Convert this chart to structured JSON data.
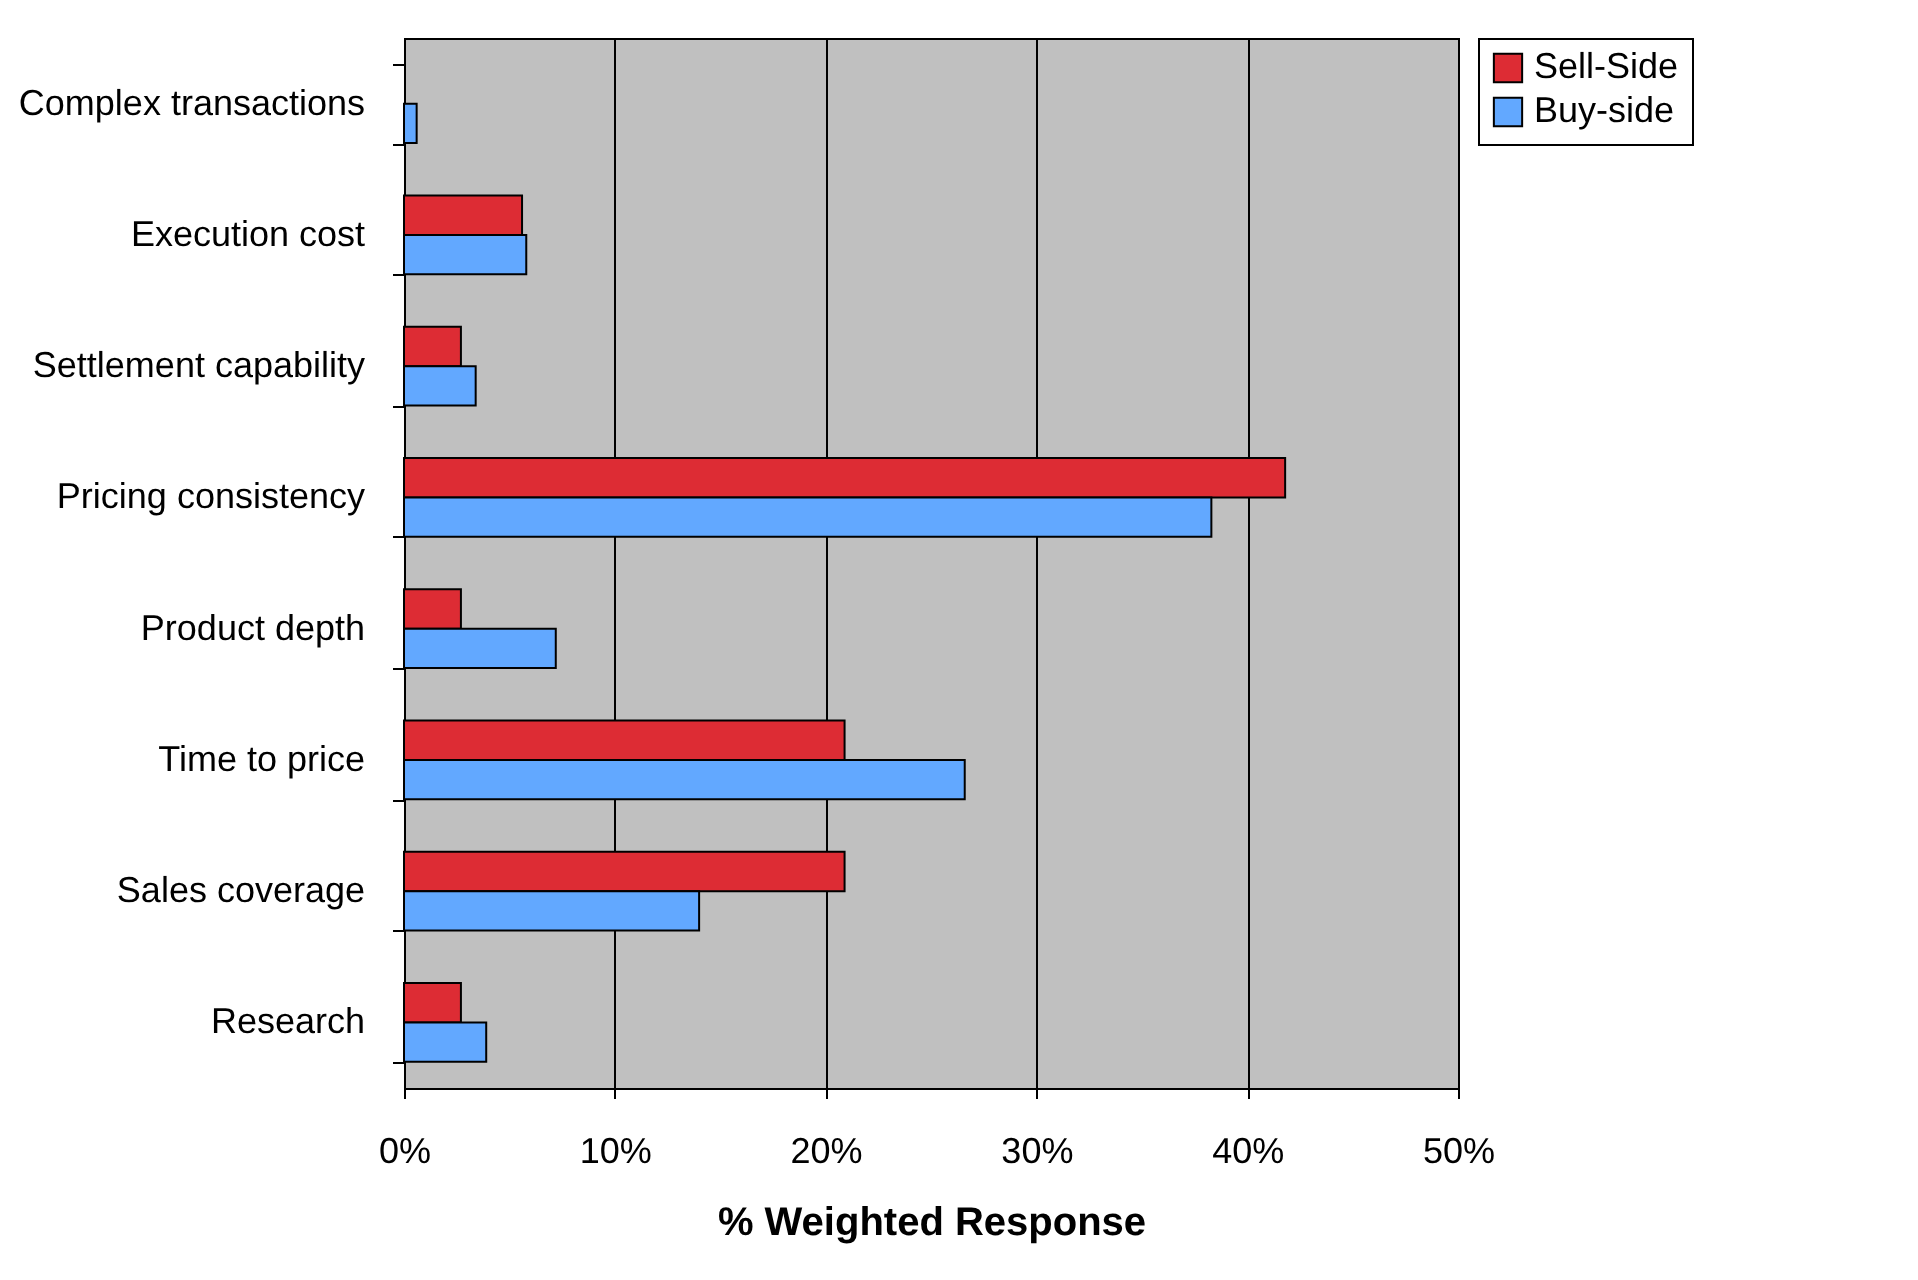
{
  "chart_data": {
    "type": "bar",
    "orientation": "horizontal",
    "xlabel": "% Weighted Response",
    "categories": [
      "Complex transactions",
      "Execution cost",
      "Settlement capability",
      "Pricing consistency",
      "Product depth",
      "Time to price",
      "Sales coverage",
      "Research"
    ],
    "series": [
      {
        "name": "Sell-Side",
        "color": "#dd2c34",
        "values": [
          null,
          5.6,
          2.7,
          41.8,
          2.7,
          20.9,
          20.9,
          2.7
        ]
      },
      {
        "name": "Buy-side",
        "color": "#62a8ff",
        "values": [
          0.6,
          5.8,
          3.4,
          38.3,
          7.2,
          26.6,
          14.0,
          3.9
        ]
      }
    ],
    "xlim": [
      0,
      50
    ],
    "xticks": [
      {
        "value": 0,
        "label": "0%"
      },
      {
        "value": 10,
        "label": "10%"
      },
      {
        "value": 20,
        "label": "20%"
      },
      {
        "value": 30,
        "label": "30%"
      },
      {
        "value": 40,
        "label": "40%"
      },
      {
        "value": 50,
        "label": "50%"
      }
    ],
    "grid": "x",
    "legend": "top right"
  }
}
